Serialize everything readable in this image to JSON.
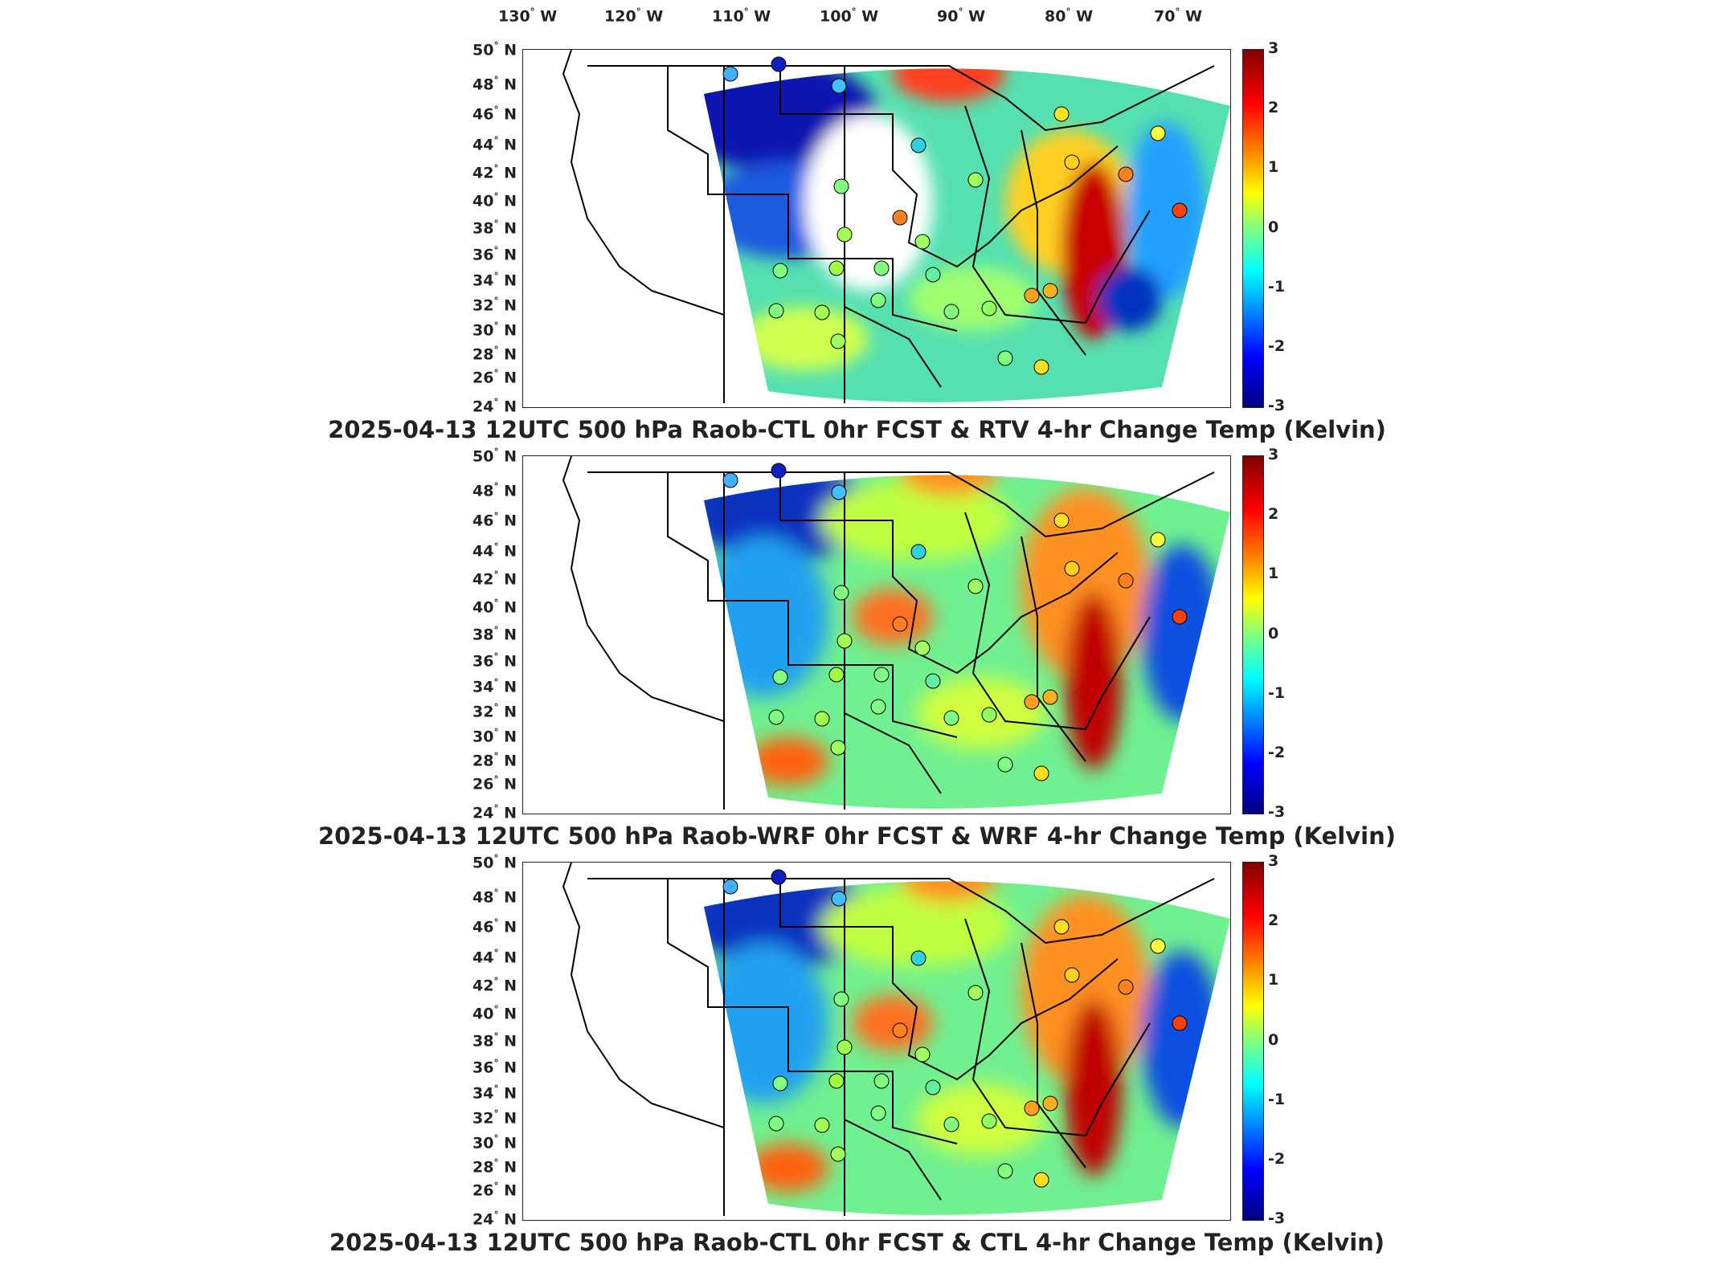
{
  "longitude_labels": [
    {
      "deg": "130",
      "hemi": "W"
    },
    {
      "deg": "120",
      "hemi": "W"
    },
    {
      "deg": "110",
      "hemi": "W"
    },
    {
      "deg": "100",
      "hemi": "W"
    },
    {
      "deg": "90",
      "hemi": "W"
    },
    {
      "deg": "80",
      "hemi": "W"
    },
    {
      "deg": "70",
      "hemi": "W"
    }
  ],
  "latitude_labels": [
    {
      "deg": "50",
      "hemi": "N"
    },
    {
      "deg": "48",
      "hemi": "N"
    },
    {
      "deg": "46",
      "hemi": "N"
    },
    {
      "deg": "44",
      "hemi": "N"
    },
    {
      "deg": "42",
      "hemi": "N"
    },
    {
      "deg": "40",
      "hemi": "N"
    },
    {
      "deg": "38",
      "hemi": "N"
    },
    {
      "deg": "36",
      "hemi": "N"
    },
    {
      "deg": "34",
      "hemi": "N"
    },
    {
      "deg": "32",
      "hemi": "N"
    },
    {
      "deg": "30",
      "hemi": "N"
    },
    {
      "deg": "28",
      "hemi": "N"
    },
    {
      "deg": "26",
      "hemi": "N"
    },
    {
      "deg": "24",
      "hemi": "N"
    }
  ],
  "colorbar": {
    "ticks": [
      "3",
      "2",
      "1",
      "0",
      "-1",
      "-2",
      "-3"
    ],
    "range": [
      -3,
      3
    ],
    "colormap": [
      "#800000",
      "#ff0000",
      "#ff8000",
      "#ffff00",
      "#80ff80",
      "#00ffff",
      "#0080ff",
      "#0000ff",
      "#000080"
    ]
  },
  "panels": [
    {
      "title": "2025-04-13 12UTC 500 hPa Raob-CTL 0hr FCST & RTV 4-hr Change Temp (Kelvin)"
    },
    {
      "title": "2025-04-13 12UTC 500 hPa Raob-WRF 0hr FCST & WRF 4-hr Change Temp (Kelvin)"
    },
    {
      "title": "2025-04-13 12UTC 500 hPa Raob-CTL 0hr FCST & CTL 4-hr Change Temp (Kelvin)"
    }
  ]
}
